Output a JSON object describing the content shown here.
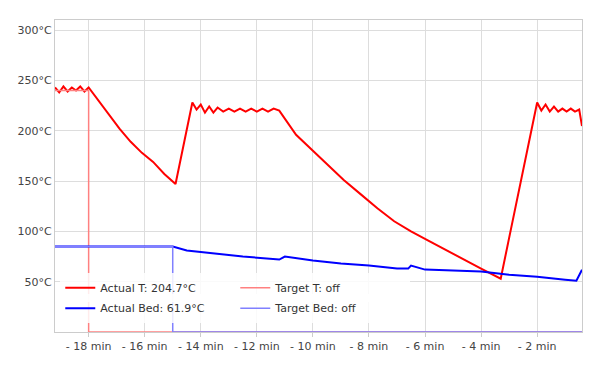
{
  "chart_data": {
    "type": "line",
    "grid": true,
    "legend": "lower left",
    "xlim": [
      -19.2,
      -0.4
    ],
    "ylim": [
      0,
      310
    ],
    "xticks": [
      {
        "value": -18,
        "label": "- 18 min"
      },
      {
        "value": -16,
        "label": "- 16 min"
      },
      {
        "value": -14,
        "label": "- 14 min"
      },
      {
        "value": -12,
        "label": "- 12 min"
      },
      {
        "value": -10,
        "label": "- 10 min"
      },
      {
        "value": -8,
        "label": "- 8 min"
      },
      {
        "value": -6,
        "label": "- 6 min"
      },
      {
        "value": -4,
        "label": "- 4 min"
      },
      {
        "value": -2,
        "label": "- 2 min"
      }
    ],
    "yticks": [
      {
        "value": 50,
        "label": "50°C"
      },
      {
        "value": 100,
        "label": "100°C"
      },
      {
        "value": 150,
        "label": "150°C"
      },
      {
        "value": 200,
        "label": "200°C"
      },
      {
        "value": 250,
        "label": "250°C"
      },
      {
        "value": 300,
        "label": "300°C"
      }
    ],
    "series": [
      {
        "name": "Actual T: 204.7°C",
        "color": "#ff0000",
        "x": [
          -19.2,
          -19.05,
          -18.9,
          -18.75,
          -18.6,
          -18.45,
          -18.3,
          -18.15,
          -18.0,
          -17.6,
          -17.3,
          -16.9,
          -16.5,
          -16.1,
          -15.7,
          -15.3,
          -14.9,
          -14.3,
          -14.15,
          -14.0,
          -13.85,
          -13.7,
          -13.55,
          -13.4,
          -13.2,
          -13.0,
          -12.8,
          -12.6,
          -12.4,
          -12.2,
          -12.0,
          -11.8,
          -11.6,
          -11.4,
          -11.2,
          -10.6,
          -10.0,
          -9.5,
          -8.9,
          -8.3,
          -7.7,
          -7.1,
          -6.5,
          -5.9,
          -5.3,
          -4.7,
          -4.0,
          -3.3,
          -2.0,
          -1.85,
          -1.7,
          -1.55,
          -1.4,
          -1.25,
          -1.1,
          -0.95,
          -0.8,
          -0.65,
          -0.5,
          -0.4
        ],
        "values": [
          243,
          238,
          244,
          239,
          243,
          240,
          244,
          239,
          243,
          228,
          216,
          202,
          189,
          178,
          169,
          157,
          147,
          228,
          221,
          226,
          218,
          224,
          218,
          223,
          219,
          222,
          219,
          222,
          219,
          222,
          219,
          222,
          219,
          222,
          220,
          196,
          180,
          167,
          151,
          137,
          123,
          110,
          100,
          91,
          82,
          73,
          63,
          53,
          228,
          220,
          226,
          219,
          224,
          219,
          222,
          219,
          222,
          219,
          221,
          204.7
        ]
      },
      {
        "name": "Target T: off",
        "color": "#ff8080",
        "x": [
          -19.2,
          -18.0,
          -18.0,
          -0.4
        ],
        "values": [
          240,
          240,
          0,
          0
        ]
      },
      {
        "name": "Actual Bed: 61.9°C",
        "color": "#0000ff",
        "x": [
          -19.2,
          -15.0,
          -14.5,
          -13.5,
          -12.5,
          -11.2,
          -11.0,
          -10.0,
          -9.0,
          -8.0,
          -7.0,
          -6.6,
          -6.5,
          -6.0,
          -5.0,
          -4.0,
          -3.0,
          -2.0,
          -1.0,
          -0.6,
          -0.4
        ],
        "values": [
          85,
          85,
          81,
          78,
          75,
          72,
          75,
          71,
          68,
          66,
          63,
          63,
          66,
          62,
          61,
          60,
          57,
          55,
          52,
          51,
          61.9
        ]
      },
      {
        "name": "Target Bed: off",
        "color": "#8080ff",
        "x": [
          -19.2,
          -15.0,
          -15.0,
          -0.4
        ],
        "values": [
          85,
          85,
          0,
          0
        ]
      }
    ]
  }
}
